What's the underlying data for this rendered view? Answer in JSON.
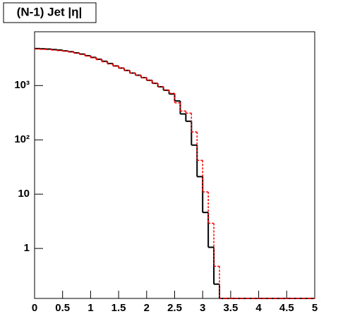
{
  "chart_data": {
    "type": "histogram",
    "title": "(N-1) Jet |η|",
    "bins": [
      0,
      0.1,
      0.2,
      0.3,
      0.4,
      0.5,
      0.6,
      0.7,
      0.8,
      0.9,
      1,
      1.1,
      1.2,
      1.3,
      1.4,
      1.5,
      1.6,
      1.7,
      1.8,
      1.9,
      2,
      2.1,
      2.2,
      2.3,
      2.4,
      2.5,
      2.6,
      2.7,
      2.8,
      2.9,
      3,
      3.1,
      3.2,
      3.3,
      3.4,
      3.5,
      3.6,
      3.7,
      3.8,
      3.9,
      4,
      4.1,
      4.2,
      4.3,
      4.4,
      4.5,
      4.6,
      4.7,
      4.8,
      4.9,
      5
    ],
    "series": [
      {
        "color": "#000000",
        "linestyle": "solid",
        "values": [
          4800,
          4750,
          4700,
          4600,
          4500,
          4350,
          4200,
          4000,
          3800,
          3550,
          3300,
          3050,
          2800,
          2550,
          2300,
          2100,
          1900,
          1700,
          1550,
          1400,
          1250,
          1100,
          950,
          820,
          700,
          520,
          300,
          220,
          80,
          21,
          4.6,
          1.05,
          0.22,
          0,
          0,
          0,
          0,
          0,
          0,
          0,
          0,
          0,
          0,
          0,
          0,
          0,
          0,
          0,
          0,
          0
        ]
      },
      {
        "color": "#ff0000",
        "linestyle": "dashed",
        "values": [
          4700,
          4650,
          4600,
          4500,
          4400,
          4300,
          4150,
          3950,
          3750,
          3500,
          3250,
          3000,
          2750,
          2500,
          2300,
          2100,
          1900,
          1700,
          1550,
          1400,
          1250,
          1100,
          960,
          830,
          720,
          480,
          340,
          310,
          140,
          42,
          11,
          2.9,
          0.47,
          0,
          0,
          0,
          0,
          0,
          0,
          0,
          0,
          0,
          0,
          0,
          0,
          0,
          0,
          0,
          0,
          0
        ]
      }
    ],
    "xlim": [
      0,
      5
    ],
    "xticks": [
      0,
      0.5,
      1,
      1.5,
      2,
      2.5,
      3,
      3.5,
      4,
      4.5,
      5
    ],
    "ylim": [
      0.12,
      9800
    ],
    "ylog": true,
    "yticks": [
      {
        "value": 1,
        "label": "1"
      },
      {
        "value": 10,
        "label": "10"
      },
      {
        "value": 100,
        "label": "10²"
      },
      {
        "value": 1000,
        "label": "10³"
      }
    ]
  }
}
